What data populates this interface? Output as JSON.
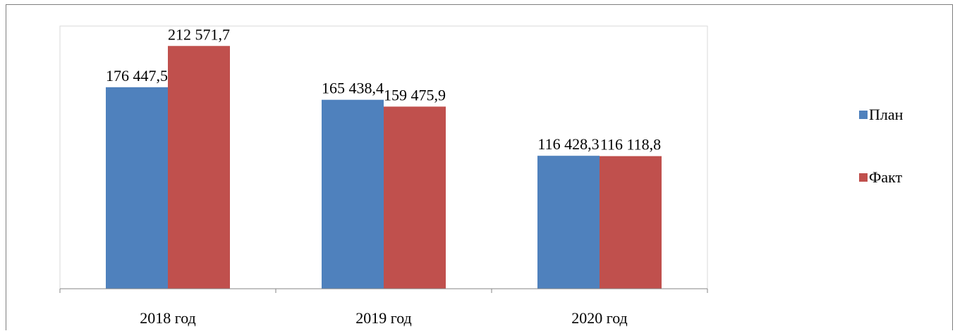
{
  "chart_data": {
    "type": "bar",
    "categories": [
      "2018 год",
      "2019 год",
      "2020 год"
    ],
    "series": [
      {
        "name": "План",
        "color": "#4f81bd",
        "values": [
          176447.5,
          165438.4,
          116428.3
        ],
        "labels": [
          "176 447,5",
          "165 438,4",
          "116 428,3"
        ]
      },
      {
        "name": "Факт",
        "color": "#c0504d",
        "values": [
          212571.7,
          159475.9,
          116118.8
        ],
        "labels": [
          "212 571,7",
          "159 475,9",
          "116 118,8"
        ]
      }
    ],
    "ylim": [
      0,
      230000
    ],
    "grid": false,
    "legend_position": "right"
  }
}
